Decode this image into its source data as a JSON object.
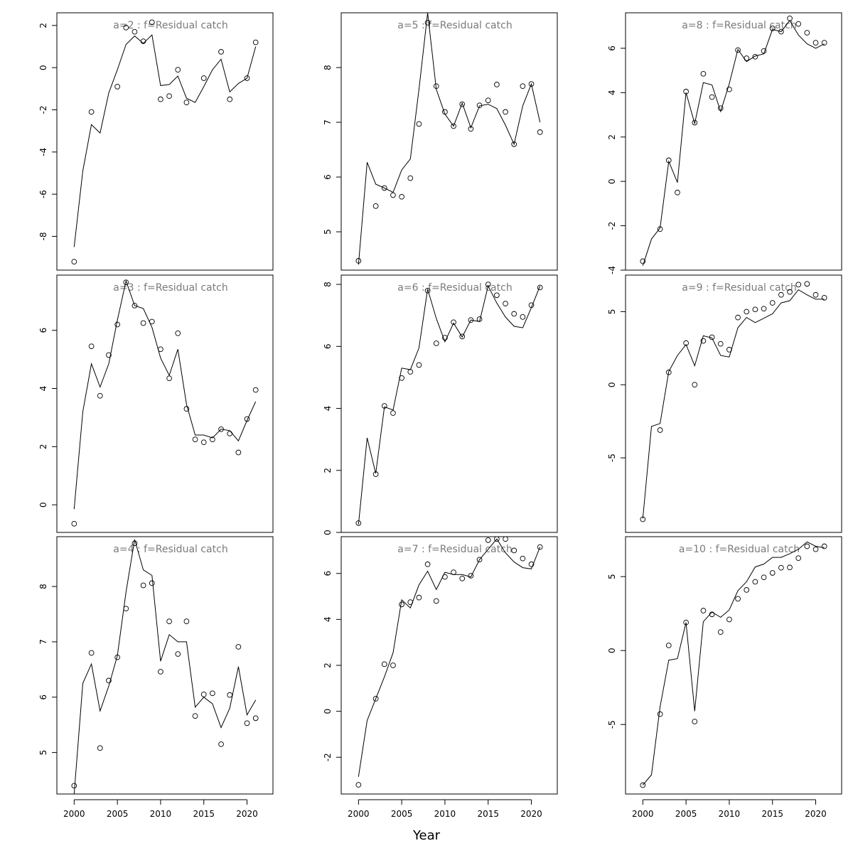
{
  "figure": {
    "xlabel": "Year"
  },
  "chart_data": [
    {
      "type": "line",
      "title": "a=2  :  f=Residual catch",
      "xlim": [
        1998,
        2023
      ],
      "ylim": [
        -9.6,
        2.6
      ],
      "xticks": [],
      "yticks": [
        -8,
        -6,
        -4,
        -2,
        0,
        2
      ],
      "x": [
        2000,
        2001,
        2002,
        2003,
        2004,
        2005,
        2006,
        2007,
        2008,
        2009,
        2010,
        2011,
        2012,
        2013,
        2014,
        2015,
        2016,
        2017,
        2018,
        2019,
        2020,
        2021
      ],
      "series": [
        {
          "kind": "line",
          "values": [
            -8.5,
            -4.9,
            -2.7,
            -3.1,
            -1.2,
            -0.1,
            1.1,
            1.5,
            1.15,
            1.55,
            -0.85,
            -0.8,
            -0.4,
            -1.45,
            -1.65,
            -0.9,
            -0.1,
            0.4,
            -1.15,
            -0.75,
            -0.5,
            1.0
          ]
        },
        {
          "kind": "points",
          "values": [
            -9.2,
            null,
            -2.1,
            null,
            null,
            -0.9,
            1.9,
            1.7,
            1.25,
            2.15,
            -1.5,
            -1.35,
            -0.1,
            -1.65,
            null,
            -0.5,
            null,
            0.75,
            -1.5,
            null,
            -0.5,
            1.2
          ]
        }
      ]
    },
    {
      "type": "line",
      "title": "a=5  :  f=Residual catch",
      "xlim": [
        1998,
        2023
      ],
      "ylim": [
        4.3,
        9.0
      ],
      "xticks": [],
      "yticks": [
        5,
        6,
        7,
        8
      ],
      "x": [
        2000,
        2001,
        2002,
        2003,
        2004,
        2005,
        2006,
        2007,
        2008,
        2009,
        2010,
        2011,
        2012,
        2013,
        2014,
        2015,
        2016,
        2017,
        2018,
        2019,
        2020,
        2021
      ],
      "series": [
        {
          "kind": "line",
          "values": [
            4.4,
            6.27,
            5.87,
            5.8,
            5.72,
            6.13,
            6.33,
            7.6,
            9.0,
            7.6,
            7.15,
            6.93,
            7.35,
            6.9,
            7.3,
            7.33,
            7.25,
            6.95,
            6.6,
            7.3,
            7.7,
            7.0
          ]
        },
        {
          "kind": "points",
          "values": [
            4.47,
            null,
            5.47,
            5.8,
            5.67,
            5.64,
            5.98,
            6.97,
            8.82,
            7.66,
            7.19,
            6.93,
            7.33,
            6.88,
            7.31,
            7.4,
            7.69,
            7.19,
            6.6,
            7.66,
            7.7,
            6.82
          ]
        }
      ]
    },
    {
      "type": "line",
      "title": "a=8  :  f=Residual catch",
      "xlim": [
        1998,
        2023
      ],
      "ylim": [
        -4.0,
        7.6
      ],
      "xticks": [],
      "yticks": [
        -4,
        -2,
        0,
        2,
        4,
        6
      ],
      "x": [
        2000,
        2001,
        2002,
        2003,
        2004,
        2005,
        2006,
        2007,
        2008,
        2009,
        2010,
        2011,
        2012,
        2013,
        2014,
        2015,
        2016,
        2017,
        2018,
        2019,
        2020,
        2021
      ],
      "series": [
        {
          "kind": "line",
          "values": [
            -3.8,
            -2.6,
            -2.1,
            0.9,
            -0.05,
            4.0,
            2.6,
            4.45,
            4.35,
            3.15,
            4.4,
            5.95,
            5.4,
            5.65,
            5.75,
            6.85,
            6.75,
            7.25,
            6.6,
            6.2,
            6.0,
            6.2
          ]
        },
        {
          "kind": "points",
          "values": [
            -3.6,
            null,
            -2.15,
            0.95,
            -0.5,
            4.05,
            2.65,
            4.85,
            3.8,
            3.3,
            4.15,
            5.92,
            5.55,
            5.62,
            5.88,
            6.9,
            6.75,
            7.35,
            7.1,
            6.7,
            6.25,
            6.25
          ]
        }
      ]
    },
    {
      "type": "line",
      "title": "a=3  :  f=Residual catch",
      "xlim": [
        1998,
        2023
      ],
      "ylim": [
        -0.95,
        7.9
      ],
      "xticks": [],
      "yticks": [
        0,
        2,
        4,
        6
      ],
      "x": [
        2000,
        2001,
        2002,
        2003,
        2004,
        2005,
        2006,
        2007,
        2008,
        2009,
        2010,
        2011,
        2012,
        2013,
        2014,
        2015,
        2016,
        2017,
        2018,
        2019,
        2020,
        2021
      ],
      "series": [
        {
          "kind": "line",
          "values": [
            -0.15,
            3.2,
            4.85,
            4.05,
            4.85,
            6.35,
            7.7,
            6.85,
            6.75,
            6.1,
            5.05,
            4.45,
            5.35,
            3.45,
            2.4,
            2.4,
            2.3,
            2.6,
            2.55,
            2.2,
            2.9,
            3.55
          ]
        },
        {
          "kind": "points",
          "values": [
            -0.65,
            null,
            5.45,
            3.75,
            5.15,
            6.2,
            7.65,
            6.85,
            6.25,
            6.3,
            5.35,
            4.35,
            5.9,
            3.3,
            2.25,
            2.15,
            2.25,
            2.6,
            2.45,
            1.8,
            2.95,
            3.95
          ]
        }
      ]
    },
    {
      "type": "line",
      "title": "a=6  :  f=Residual catch",
      "xlim": [
        1998,
        2023
      ],
      "ylim": [
        0,
        8.3
      ],
      "xticks": [],
      "yticks": [
        0,
        2,
        4,
        6,
        8
      ],
      "x": [
        2000,
        2001,
        2002,
        2003,
        2004,
        2005,
        2006,
        2007,
        2008,
        2009,
        2010,
        2011,
        2012,
        2013,
        2014,
        2015,
        2016,
        2017,
        2018,
        2019,
        2020,
        2021
      ],
      "series": [
        {
          "kind": "line",
          "values": [
            0.25,
            3.05,
            1.9,
            4.05,
            3.95,
            5.3,
            5.25,
            5.95,
            7.85,
            6.9,
            6.15,
            6.75,
            6.3,
            6.85,
            6.8,
            7.95,
            7.4,
            6.95,
            6.65,
            6.6,
            7.25,
            7.95
          ]
        },
        {
          "kind": "points",
          "values": [
            0.3,
            null,
            1.88,
            4.08,
            3.85,
            4.98,
            5.18,
            5.4,
            7.8,
            6.1,
            6.28,
            6.78,
            6.32,
            6.85,
            6.88,
            8.0,
            7.65,
            7.38,
            7.05,
            6.95,
            7.33,
            7.9
          ]
        }
      ]
    },
    {
      "type": "line",
      "title": "a=9  :  f=Residual catch",
      "xlim": [
        1998,
        2023
      ],
      "ylim": [
        -10.1,
        7.5
      ],
      "xticks": [],
      "yticks": [
        -5,
        0,
        5
      ],
      "x": [
        2000,
        2001,
        2002,
        2003,
        2004,
        2005,
        2006,
        2007,
        2008,
        2009,
        2010,
        2011,
        2012,
        2013,
        2014,
        2015,
        2016,
        2017,
        2018,
        2019,
        2020,
        2021
      ],
      "series": [
        {
          "kind": "line",
          "values": [
            -9.15,
            -2.85,
            -2.65,
            0.9,
            2.0,
            2.75,
            1.3,
            3.35,
            3.2,
            2.0,
            1.9,
            3.9,
            4.6,
            4.25,
            4.55,
            4.85,
            5.6,
            5.75,
            6.5,
            6.15,
            5.85,
            5.85
          ]
        },
        {
          "kind": "points",
          "values": [
            -9.2,
            null,
            -3.1,
            0.85,
            null,
            2.85,
            0.0,
            3.0,
            3.25,
            2.8,
            2.4,
            4.6,
            5.0,
            5.15,
            5.2,
            5.6,
            6.15,
            6.35,
            6.85,
            6.9,
            6.15,
            5.95
          ]
        }
      ]
    },
    {
      "type": "line",
      "title": "a=4  :  f=Residual catch",
      "xlim": [
        1998,
        2023
      ],
      "ylim": [
        4.25,
        8.9
      ],
      "xticks": [
        2000,
        2005,
        2010,
        2015,
        2020
      ],
      "yticks": [
        5,
        6,
        7,
        8
      ],
      "x": [
        2000,
        2001,
        2002,
        2003,
        2004,
        2005,
        2006,
        2007,
        2008,
        2009,
        2010,
        2011,
        2012,
        2013,
        2014,
        2015,
        2016,
        2017,
        2018,
        2019,
        2020,
        2021
      ],
      "series": [
        {
          "kind": "line",
          "values": [
            4.25,
            6.25,
            6.6,
            5.75,
            6.2,
            6.75,
            7.9,
            8.85,
            8.3,
            8.2,
            6.65,
            7.13,
            7.0,
            7.0,
            5.82,
            6.0,
            5.88,
            5.45,
            5.8,
            6.55,
            5.68,
            5.95
          ]
        },
        {
          "kind": "points",
          "values": [
            4.4,
            null,
            6.8,
            5.08,
            6.3,
            6.72,
            7.6,
            8.78,
            8.02,
            8.06,
            6.46,
            7.37,
            6.78,
            7.37,
            5.66,
            6.05,
            6.07,
            5.15,
            6.04,
            6.91,
            5.53,
            5.62
          ]
        }
      ]
    },
    {
      "type": "line",
      "title": "a=7  :  f=Residual catch",
      "xlim": [
        1998,
        2023
      ],
      "ylim": [
        -3.6,
        7.6
      ],
      "xticks": [
        2000,
        2005,
        2010,
        2015,
        2020
      ],
      "yticks": [
        -2,
        0,
        2,
        4,
        6
      ],
      "x": [
        2000,
        2001,
        2002,
        2003,
        2004,
        2005,
        2006,
        2007,
        2008,
        2009,
        2010,
        2011,
        2012,
        2013,
        2014,
        2015,
        2016,
        2017,
        2018,
        2019,
        2020,
        2021
      ],
      "series": [
        {
          "kind": "line",
          "values": [
            -2.85,
            -0.4,
            0.55,
            1.5,
            2.55,
            4.85,
            4.5,
            5.5,
            6.1,
            5.3,
            6.05,
            5.95,
            5.95,
            5.85,
            6.6,
            7.05,
            7.5,
            6.9,
            6.5,
            6.25,
            6.2,
            7.15
          ]
        },
        {
          "kind": "points",
          "values": [
            -3.2,
            null,
            0.55,
            2.05,
            2.0,
            4.65,
            4.75,
            4.95,
            6.4,
            4.8,
            5.85,
            6.05,
            5.78,
            5.9,
            6.6,
            7.45,
            7.5,
            7.5,
            7.0,
            6.65,
            6.4,
            7.15
          ]
        }
      ]
    },
    {
      "type": "line",
      "title": "a=10  :  f=Residual catch",
      "xlim": [
        1998,
        2023
      ],
      "ylim": [
        -9.7,
        7.7
      ],
      "xticks": [
        2000,
        2005,
        2010,
        2015,
        2020
      ],
      "yticks": [
        -5,
        0,
        5
      ],
      "x": [
        2000,
        2001,
        2002,
        2003,
        2004,
        2005,
        2006,
        2007,
        2008,
        2009,
        2010,
        2011,
        2012,
        2013,
        2014,
        2015,
        2016,
        2017,
        2018,
        2019,
        2020,
        2021
      ],
      "series": [
        {
          "kind": "line",
          "values": [
            -9.1,
            -8.4,
            -3.8,
            -0.65,
            -0.55,
            1.9,
            -4.1,
            1.95,
            2.6,
            2.25,
            2.75,
            4.05,
            4.65,
            5.65,
            5.85,
            6.3,
            6.3,
            6.55,
            6.85,
            7.35,
            7.05,
            6.95
          ]
        },
        {
          "kind": "points",
          "values": [
            -9.1,
            null,
            -4.3,
            0.35,
            null,
            1.9,
            -4.8,
            2.7,
            2.45,
            1.25,
            2.1,
            3.5,
            4.1,
            4.65,
            4.95,
            5.25,
            5.6,
            5.62,
            6.25,
            7.05,
            6.85,
            7.05
          ]
        }
      ]
    }
  ]
}
